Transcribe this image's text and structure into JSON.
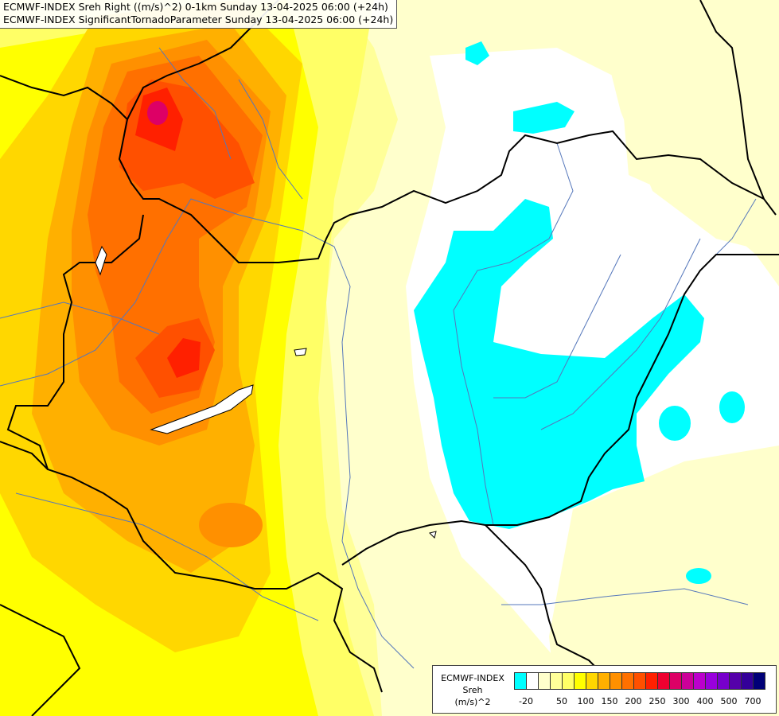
{
  "title": {
    "line1": "ECMWF-INDEX Sreh Right ((m/s)^2) 0-1km Sunday 13-04-2025 06:00 (+24h)",
    "line2": "ECMWF-INDEX SignificantTornadoParameter Sunday 13-04-2025 06:00 (+24h)"
  },
  "legend": {
    "line1": "ECMWF-INDEX",
    "line2": "Sreh",
    "line3": "(m/s)^2",
    "swatch_colors": [
      "#00ffff",
      "#ffffff",
      "#ffffcc",
      "#ffff99",
      "#ffff66",
      "#ffff00",
      "#ffd700",
      "#ffb000",
      "#ff9000",
      "#ff7000",
      "#ff5000",
      "#ff2000",
      "#ee0030",
      "#dd0066",
      "#cc0099",
      "#bb00cc",
      "#9900dd",
      "#7700cc",
      "#5500aa",
      "#330099",
      "#000077"
    ],
    "tick_labels": [
      "-20",
      "50",
      "100",
      "150",
      "200",
      "250",
      "300",
      "400",
      "500",
      "700"
    ]
  },
  "map": {
    "colors": {
      "cyan": "#00ffff",
      "white": "#ffffff",
      "pale_yellow": "#ffffcc",
      "light_yellow": "#ffff99",
      "yellow": "#ffff66",
      "strong_yellow": "#ffff00",
      "gold": "#ffd700",
      "orange_light": "#ffb000",
      "orange": "#ff9000",
      "orange_dark": "#ff7000",
      "red_orange": "#ff5000",
      "red": "#ff2000",
      "crimson": "#dd0066",
      "border": "#000000",
      "river": "#5577bb"
    }
  }
}
